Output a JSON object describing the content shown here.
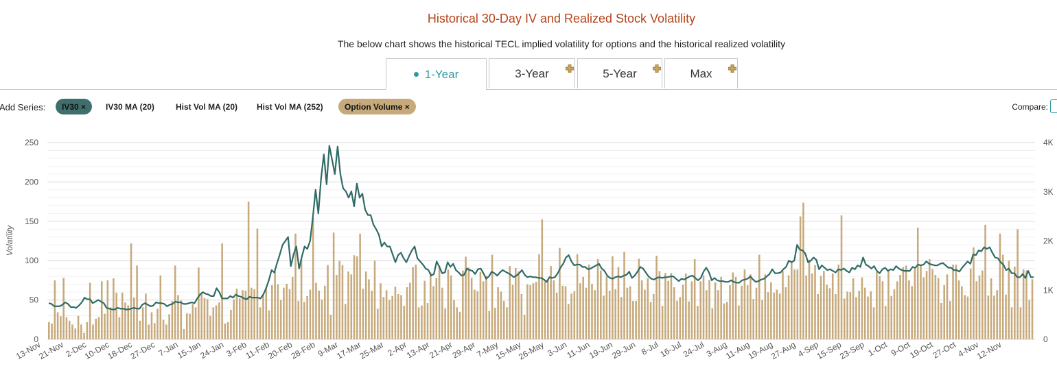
{
  "header": {
    "title": "Historical 30-Day IV and Realized Stock Volatility",
    "subtitle": "The below chart shows the historical TECL implied volatility for options and the historical realized volatility"
  },
  "tabs": [
    {
      "label": "1-Year",
      "active": true
    },
    {
      "label": "3-Year",
      "locked": true
    },
    {
      "label": "5-Year",
      "locked": true
    },
    {
      "label": "Max",
      "locked": true
    }
  ],
  "series_controls": {
    "label": "Add Series:",
    "items": [
      {
        "label": "IV30 ×",
        "active": true,
        "color": "#3f6f6c"
      },
      {
        "label": "IV30 MA (20)",
        "active": false
      },
      {
        "label": "Hist Vol MA (20)",
        "active": false
      },
      {
        "label": "Hist Vol MA (252)",
        "active": false
      },
      {
        "label": "Option Volume ×",
        "active": true,
        "color": "#c7aa7c"
      }
    ],
    "compare_label": "Compare:"
  },
  "colors": {
    "iv30": "#2f6b66",
    "volume": "#c7aa7c",
    "title": "#b5441c",
    "accent": "#2a9aa0"
  },
  "chart_data": {
    "type": "line+bar",
    "ylabel": "Volatility",
    "ylim": [
      0,
      250
    ],
    "y2lim": [
      0,
      4000
    ],
    "yticks": [
      "0",
      "50",
      "100",
      "150",
      "200",
      "250"
    ],
    "y2ticks": [
      "0",
      "1K",
      "2K",
      "3K",
      "4K"
    ],
    "x_ticks": [
      "13-Nov",
      "21-Nov",
      "2-Dec",
      "10-Dec",
      "18-Dec",
      "27-Dec",
      "7-Jan",
      "15-Jan",
      "24-Jan",
      "3-Feb",
      "11-Feb",
      "20-Feb",
      "28-Feb",
      "9-Mar",
      "17-Mar",
      "25-Mar",
      "2-Apr",
      "13-Apr",
      "21-Apr",
      "29-Apr",
      "7-May",
      "15-May",
      "26-May",
      "3-Jun",
      "11-Jun",
      "19-Jun",
      "29-Jun",
      "8-Jul",
      "16-Jul",
      "24-Jul",
      "3-Aug",
      "11-Aug",
      "19-Aug",
      "27-Aug",
      "4-Sep",
      "15-Sep",
      "23-Sep",
      "1-Oct",
      "9-Oct",
      "19-Oct",
      "27-Oct",
      "4-Nov",
      "12-Nov"
    ],
    "series": [
      {
        "name": "IV30",
        "axis": "left",
        "kind": "line",
        "values": [
          46,
          45,
          42,
          42,
          42,
          44,
          47,
          45,
          41,
          41,
          40,
          43,
          47,
          53,
          51,
          51,
          46,
          48,
          50,
          48,
          46,
          40,
          39,
          38,
          38,
          40,
          39,
          39,
          38,
          38,
          39,
          40,
          39,
          39,
          44,
          46,
          44,
          42,
          43,
          47,
          46,
          46,
          45,
          42,
          44,
          45,
          48,
          47,
          47,
          45,
          45,
          46,
          47,
          46,
          52,
          57,
          60,
          58,
          57,
          55,
          55,
          65,
          60,
          52,
          52,
          52,
          55,
          53,
          57,
          55,
          54,
          52,
          51,
          54,
          53,
          53,
          53,
          52,
          57,
          65,
          75,
          88,
          85,
          97,
          108,
          120,
          125,
          130,
          93,
          108,
          118,
          90,
          105,
          118,
          115,
          125,
          155,
          190,
          160,
          205,
          235,
          197,
          246,
          228,
          210,
          245,
          210,
          192,
          188,
          180,
          188,
          169,
          198,
          180,
          185,
          165,
          158,
          158,
          146,
          140,
          133,
          118,
          123,
          118,
          118,
          108,
          98,
          107,
          110,
          103,
          98,
          106,
          113,
          118,
          103,
          99,
          95,
          90,
          88,
          81,
          83,
          99,
          92,
          84,
          85,
          98,
          92,
          96,
          88,
          85,
          81,
          82,
          90,
          88,
          87,
          83,
          89,
          90,
          84,
          77,
          80,
          86,
          84,
          81,
          85,
          88,
          86,
          84,
          82,
          79,
          81,
          84,
          88,
          82,
          79,
          80,
          79,
          79,
          78,
          78,
          76,
          73,
          79,
          78,
          79,
          84,
          91,
          96,
          104,
          107,
          99,
          94,
          95,
          95,
          92,
          92,
          89,
          90,
          92,
          94,
          96,
          90,
          87,
          81,
          78,
          77,
          79,
          80,
          79,
          81,
          82,
          86,
          78,
          81,
          86,
          92,
          90,
          85,
          80,
          77,
          76,
          78,
          79,
          78,
          79,
          79,
          80,
          80,
          77,
          74,
          77,
          76,
          78,
          80,
          81,
          78,
          75,
          78,
          86,
          91,
          85,
          75,
          78,
          75,
          74,
          74,
          73,
          73,
          75,
          73,
          72,
          72,
          75,
          76,
          77,
          80,
          76,
          73,
          74,
          76,
          77,
          80,
          83,
          89,
          84,
          84,
          85,
          89,
          92,
          100,
          98,
          100,
          120,
          114,
          113,
          109,
          98,
          100,
          104,
          101,
          89,
          94,
          91,
          88,
          89,
          87,
          85,
          89,
          88,
          90,
          87,
          85,
          91,
          89,
          94,
          92,
          104,
          95,
          93,
          90,
          93,
          87,
          84,
          89,
          91,
          87,
          89,
          88,
          93,
          90,
          88,
          87,
          87,
          87,
          92,
          91,
          95,
          94,
          95,
          99,
          96,
          95,
          94,
          94,
          96,
          97,
          94,
          91,
          91,
          88,
          88,
          86,
          91,
          95,
          99,
          96,
          108,
          107,
          113,
          112,
          117,
          115,
          117,
          110,
          104,
          103,
          98,
          95,
          88,
          90,
          84,
          84,
          79,
          79,
          83,
          78,
          87,
          79,
          79
        ]
      },
      {
        "name": "Option Volume",
        "axis": "right",
        "kind": "bar",
        "values": [
          350,
          320,
          1200,
          550,
          470,
          1250,
          450,
          380,
          300,
          220,
          480,
          300,
          130,
          350,
          1150,
          300,
          420,
          450,
          1180,
          520,
          1200,
          650,
          1240,
          950,
          450,
          950,
          750,
          690,
          1950,
          850,
          1500,
          380,
          650,
          930,
          300,
          550,
          330,
          620,
          1300,
          400,
          300,
          510,
          780,
          1500,
          900,
          790,
          210,
          530,
          520,
          720,
          650,
          1460,
          940,
          840,
          820,
          480,
          650,
          690,
          750,
          1950,
          320,
          350,
          600,
          810,
          1030,
          830,
          1000,
          990,
          2800,
          1050,
          1020,
          2250,
          650,
          900,
          1030,
          590,
          1100,
          1380,
          1120,
          800,
          1050,
          1130,
          1020,
          1270,
          2150,
          780,
          1630,
          760,
          880,
          1010,
          2470,
          1150,
          990,
          810,
          1090,
          1510,
          500,
          2170,
          1310,
          1600,
          1510,
          720,
          1380,
          1320,
          1710,
          1690,
          2150,
          1030,
          1380,
          1220,
          990,
          1600,
          620,
          1140,
          860,
          1000,
          800,
          880,
          1070,
          920,
          900,
          680,
          1060,
          1150,
          1470,
          1520,
          650,
          690,
          1190,
          740,
          1360,
          1080,
          1250,
          1500,
          1050,
          630,
          1420,
          1300,
          800,
          650,
          560,
          1400,
          1680,
          1460,
          1250,
          1010,
          980,
          1370,
          1180,
          1290,
          580,
          1720,
          640,
          1060,
          970,
          780,
          650,
          1490,
          1110,
          1450,
          1380,
          920,
          500,
          1120,
          1100,
          1140,
          1170,
          1730,
          2440,
          1180,
          1200,
          1490,
          1200,
          950,
          1860,
          1090,
          1080,
          720,
          930,
          980,
          1730,
          1140,
          1270,
          1050,
          1520,
          1130,
          1000,
          1630,
          1400,
          890,
          1280,
          990,
          1690,
          1020,
          1470,
          860,
          1780,
          1050,
          1080,
          780,
          780,
          1640,
          1200,
          1010,
          1240,
          760,
          920,
          1700,
          1390,
          680,
          1350,
          1190,
          1350,
          1060,
          780,
          860,
          1110,
          1340,
          770,
          1180,
          1630,
          680,
          1180,
          1300,
          1000,
          1210,
          630,
          1160,
          1000,
          1270,
          730,
          760,
          1100,
          1360,
          1270,
          690,
          1090,
          1420,
          1100,
          1320,
          820,
          1050,
          1720,
          800,
          1320,
          960,
          1160,
          950,
          1010,
          930,
          1390,
          1060,
          1300,
          1560,
          1420,
          1420,
          2500,
          2780,
          1300,
          1620,
          1340,
          1510,
          920,
          1290,
          1390,
          1110,
          1040,
          1340,
          920,
          1520,
          2520,
          830,
          970,
          960,
          1240,
          860,
          990,
          1260,
          1050,
          870,
          980,
          650,
          1370,
          1290,
          1180,
          680,
          1410,
          880,
          1020,
          1180,
          1310,
          1470,
          1500,
          1200,
          1080,
          1460,
          2270,
          1490,
          1260,
          1390,
          1630,
          1430,
          1310,
          1250,
          740,
          1100,
          1320,
          780,
          1520,
          1520,
          1200,
          1080,
          900,
          870,
          1440,
          1870,
          1180,
          1300,
          1400,
          2330,
          890,
          1240,
          890,
          1000,
          2150,
          1720,
          910,
          1600,
          650,
          1480,
          2240,
          650,
          1420,
          1400,
          800,
          1220
        ]
      }
    ]
  }
}
